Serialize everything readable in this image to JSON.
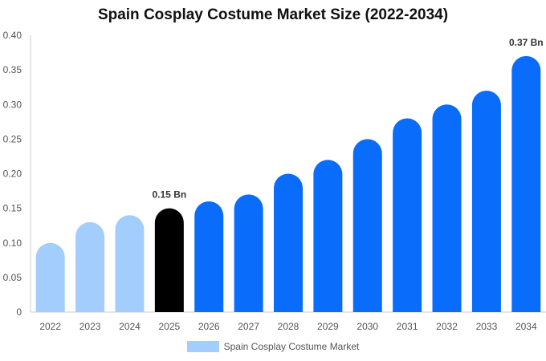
{
  "chart_data": {
    "type": "bar",
    "title": "Spain Cosplay Costume Market Size (2022-2034)",
    "categories": [
      "2022",
      "2023",
      "2024",
      "2025",
      "2026",
      "2027",
      "2028",
      "2029",
      "2030",
      "2031",
      "2032",
      "2033",
      "2034"
    ],
    "series": [
      {
        "name": "Spain Cosplay Costume Market",
        "values": [
          0.1,
          0.13,
          0.14,
          0.15,
          0.16,
          0.17,
          0.2,
          0.22,
          0.25,
          0.28,
          0.3,
          0.32,
          0.37
        ]
      }
    ],
    "ylim": [
      0,
      0.4
    ],
    "yticks": [
      "0",
      "0.05",
      "0.10",
      "0.15",
      "0.20",
      "0.25",
      "0.30",
      "0.35",
      "0.40"
    ],
    "data_labels": [
      {
        "category": "2025",
        "text": "0.15 Bn"
      },
      {
        "category": "2034",
        "text": "0.37 Bn"
      }
    ],
    "colors": {
      "historical": "#a3cdfd",
      "current": "#000000",
      "forecast": "#0a6cfb"
    },
    "bar_color_roles": [
      "historical",
      "historical",
      "historical",
      "current",
      "forecast",
      "forecast",
      "forecast",
      "forecast",
      "forecast",
      "forecast",
      "forecast",
      "forecast",
      "forecast"
    ],
    "legend": {
      "label": "Spain Cosplay Costume Market",
      "color": "#a3cdfd",
      "position": "bottom"
    },
    "grid": false
  }
}
